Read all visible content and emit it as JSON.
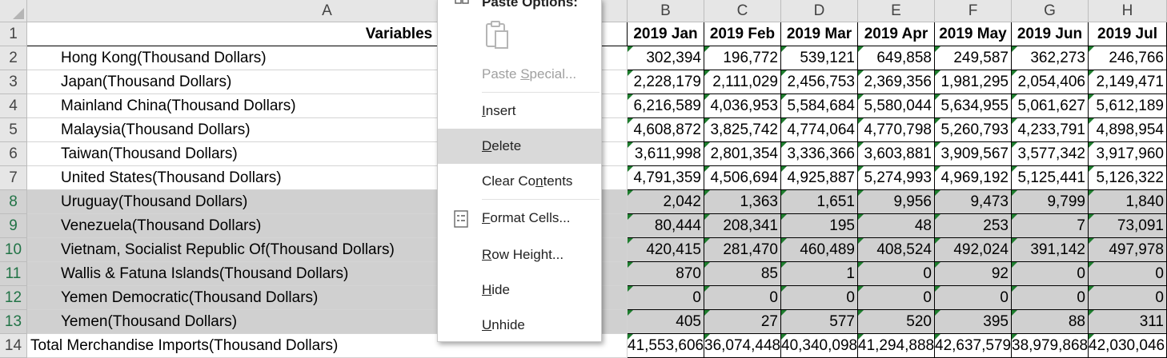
{
  "columns": [
    "A",
    "B",
    "C",
    "D",
    "E",
    "F",
    "G",
    "H"
  ],
  "rows": [
    "1",
    "2",
    "3",
    "4",
    "5",
    "6",
    "7",
    "8",
    "9",
    "10",
    "11",
    "12",
    "13",
    "14"
  ],
  "header": {
    "variables": "Variables",
    "months": [
      "2019 Jan",
      "2019 Feb",
      "2019 Mar",
      "2019 Apr",
      "2019 May",
      "2019 Jun",
      "2019 Jul"
    ]
  },
  "data": [
    {
      "label": "Hong Kong(Thousand Dollars)",
      "values": [
        "302,394",
        "196,772",
        "539,121",
        "649,858",
        "249,587",
        "362,273",
        "246,766"
      ]
    },
    {
      "label": "Japan(Thousand Dollars)",
      "values": [
        "2,228,179",
        "2,111,029",
        "2,456,753",
        "2,369,356",
        "1,981,295",
        "2,054,406",
        "2,149,471"
      ]
    },
    {
      "label": "Mainland China(Thousand Dollars)",
      "values": [
        "6,216,589",
        "4,036,953",
        "5,584,684",
        "5,580,044",
        "5,634,955",
        "5,061,627",
        "5,612,189"
      ]
    },
    {
      "label": "Malaysia(Thousand Dollars)",
      "values": [
        "4,608,872",
        "3,825,742",
        "4,774,064",
        "4,770,798",
        "5,260,793",
        "4,233,791",
        "4,898,954"
      ]
    },
    {
      "label": "Taiwan(Thousand Dollars)",
      "values": [
        "3,611,998",
        "2,801,354",
        "3,336,366",
        "3,603,881",
        "3,909,567",
        "3,577,342",
        "3,917,960"
      ]
    },
    {
      "label": "United States(Thousand Dollars)",
      "values": [
        "4,791,359",
        "4,506,694",
        "4,925,887",
        "5,274,993",
        "4,969,192",
        "5,125,441",
        "5,126,322"
      ]
    },
    {
      "label": "Uruguay(Thousand Dollars)",
      "values": [
        "2,042",
        "1,363",
        "1,651",
        "9,956",
        "9,473",
        "9,799",
        "1,840"
      ]
    },
    {
      "label": "Venezuela(Thousand Dollars)",
      "values": [
        "80,444",
        "208,341",
        "195",
        "48",
        "253",
        "7",
        "73,091"
      ]
    },
    {
      "label": "Vietnam, Socialist Republic Of(Thousand Dollars)",
      "values": [
        "420,415",
        "281,470",
        "460,489",
        "408,524",
        "492,024",
        "391,142",
        "497,978"
      ]
    },
    {
      "label": "Wallis & Fatuna Islands(Thousand Dollars)",
      "values": [
        "870",
        "85",
        "1",
        "0",
        "92",
        "0",
        "0"
      ]
    },
    {
      "label": "Yemen Democratic(Thousand Dollars)",
      "values": [
        "0",
        "0",
        "0",
        "0",
        "0",
        "0",
        "0"
      ]
    },
    {
      "label": "Yemen(Thousand Dollars)",
      "values": [
        "405",
        "27",
        "577",
        "520",
        "395",
        "88",
        "311"
      ]
    },
    {
      "label": "Total Merchandise Imports(Thousand Dollars)",
      "values": [
        "41,553,606",
        "36,074,448",
        "40,340,098",
        "41,294,888",
        "42,637,579",
        "38,979,868",
        "42,030,046"
      ]
    }
  ],
  "menu": {
    "paste_options": "Paste Options:",
    "items": [
      {
        "label": "Paste Special...",
        "pre": "Paste ",
        "ul": "S",
        "post": "pecial...",
        "disabled": true
      },
      {
        "label": "Insert",
        "pre": "",
        "ul": "I",
        "post": "nsert",
        "disabled": false
      },
      {
        "label": "Delete",
        "pre": "",
        "ul": "D",
        "post": "elete",
        "disabled": false
      },
      {
        "label": "Clear Contents",
        "pre": "Clear Co",
        "ul": "n",
        "post": "tents",
        "disabled": false
      },
      {
        "label": "Format Cells...",
        "pre": "",
        "ul": "F",
        "post": "ormat Cells...",
        "disabled": false
      },
      {
        "label": "Row Height...",
        "pre": "",
        "ul": "R",
        "post": "ow Height...",
        "disabled": false
      },
      {
        "label": "Hide",
        "pre": "",
        "ul": "H",
        "post": "ide",
        "disabled": false
      },
      {
        "label": "Unhide",
        "pre": "",
        "ul": "U",
        "post": "nhide",
        "disabled": false
      }
    ]
  },
  "icons": {
    "clipboard": "clipboard-icon",
    "format_cells": "format-cells-icon",
    "paste_small": "paste-options-icon"
  },
  "colors": {
    "header_bg": "#e6e6e6",
    "selected_row_bg": "#d0d0d0",
    "triangle": "#1e7d2e",
    "accent": "#217346"
  }
}
